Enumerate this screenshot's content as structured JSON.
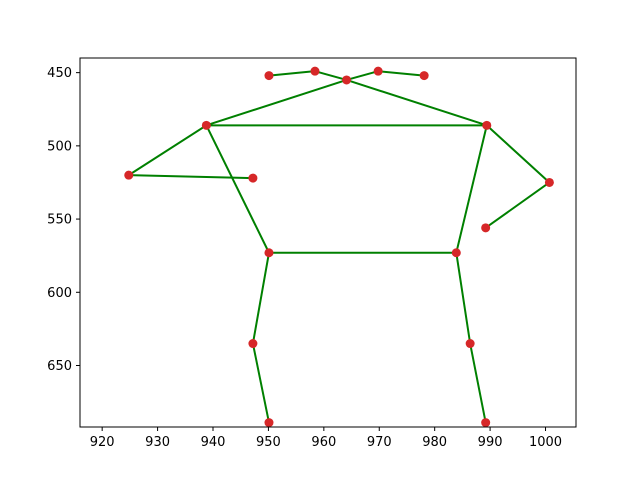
{
  "chart_data": {
    "type": "scatter",
    "title": "",
    "xlabel": "",
    "ylabel": "",
    "xlim": [
      916,
      1005.5
    ],
    "ylim": [
      692,
      440
    ],
    "y_inverted": true,
    "grid": false,
    "xticks": [
      920,
      930,
      940,
      950,
      960,
      970,
      980,
      990,
      1000
    ],
    "yticks": [
      450,
      500,
      550,
      600,
      650
    ],
    "point_color": "#d62728",
    "line_color": "#008000",
    "points": [
      {
        "x": 950.1,
        "y": 452
      },
      {
        "x": 958.4,
        "y": 449
      },
      {
        "x": 964.1,
        "y": 455
      },
      {
        "x": 969.8,
        "y": 449
      },
      {
        "x": 978.1,
        "y": 452
      },
      {
        "x": 938.8,
        "y": 486
      },
      {
        "x": 989.4,
        "y": 486
      },
      {
        "x": 924.8,
        "y": 520
      },
      {
        "x": 947.2,
        "y": 522
      },
      {
        "x": 1000.7,
        "y": 525
      },
      {
        "x": 989.2,
        "y": 556
      },
      {
        "x": 950.1,
        "y": 573
      },
      {
        "x": 983.9,
        "y": 573
      },
      {
        "x": 947.2,
        "y": 635
      },
      {
        "x": 986.4,
        "y": 635
      },
      {
        "x": 950.1,
        "y": 689
      },
      {
        "x": 989.2,
        "y": 689
      }
    ],
    "edges": [
      [
        0,
        1
      ],
      [
        1,
        2
      ],
      [
        2,
        3
      ],
      [
        3,
        4
      ],
      [
        2,
        5
      ],
      [
        2,
        6
      ],
      [
        5,
        6
      ],
      [
        5,
        7
      ],
      [
        7,
        8
      ],
      [
        6,
        9
      ],
      [
        9,
        10
      ],
      [
        5,
        11
      ],
      [
        6,
        12
      ],
      [
        11,
        12
      ],
      [
        11,
        13
      ],
      [
        13,
        15
      ],
      [
        12,
        14
      ],
      [
        14,
        16
      ]
    ]
  }
}
